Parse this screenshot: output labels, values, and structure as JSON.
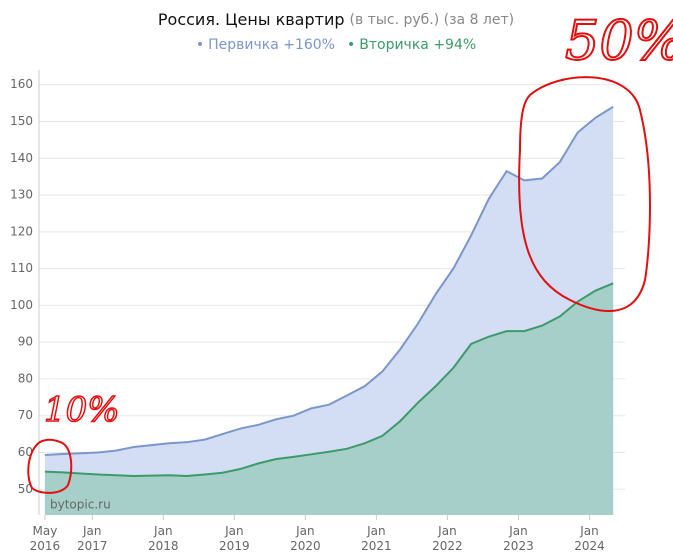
{
  "chart_data": {
    "type": "area",
    "title": "Россия. Цены квартир",
    "subtitle": "(в тыс. руб.) (за 8 лет)",
    "watermark": "bytopic.ru",
    "annotations": [
      "50%",
      "10%"
    ],
    "x": [
      "2016-05",
      "2016-08",
      "2016-11",
      "2017-02",
      "2017-05",
      "2017-08",
      "2017-11",
      "2018-02",
      "2018-05",
      "2018-08",
      "2018-11",
      "2019-02",
      "2019-05",
      "2019-08",
      "2019-11",
      "2020-02",
      "2020-05",
      "2020-08",
      "2020-11",
      "2021-02",
      "2021-05",
      "2021-08",
      "2021-11",
      "2022-02",
      "2022-05",
      "2022-08",
      "2022-11",
      "2023-02",
      "2023-05",
      "2023-08",
      "2023-11",
      "2024-02",
      "2024-05"
    ],
    "series": [
      {
        "name": "Первичка +160%",
        "color": "#7b96cc",
        "fill": "#d3ddf3",
        "values": [
          59.3,
          59.6,
          59.8,
          60.0,
          60.5,
          61.5,
          62.0,
          62.5,
          62.8,
          63.5,
          65.0,
          66.5,
          67.5,
          69.0,
          70.0,
          72.0,
          73.0,
          75.5,
          78.0,
          82.0,
          88.0,
          95.0,
          103.0,
          110.0,
          119.0,
          129.0,
          136.5,
          134.0,
          134.5,
          139.0,
          147.0,
          151.0,
          154.0
        ]
      },
      {
        "name": "Вторичка +94%",
        "color": "#3d9a6a",
        "fill": "#a7cfc9",
        "values": [
          54.8,
          54.6,
          54.3,
          54.0,
          53.8,
          53.6,
          53.7,
          53.8,
          53.6,
          54.0,
          54.5,
          55.5,
          57.0,
          58.2,
          58.8,
          59.5,
          60.2,
          61.0,
          62.5,
          64.5,
          68.5,
          73.5,
          78.0,
          83.0,
          89.5,
          91.5,
          93.0,
          93.0,
          94.5,
          97.0,
          101.0,
          104.0,
          106.0
        ]
      }
    ],
    "xlim": [
      "2016-04",
      "2024-07"
    ],
    "xticks": [
      {
        "value": "2016-05",
        "label": [
          "May",
          "2016"
        ]
      },
      {
        "value": "2017-01",
        "label": [
          "Jan",
          "2017"
        ]
      },
      {
        "value": "2018-01",
        "label": [
          "Jan",
          "2018"
        ]
      },
      {
        "value": "2019-01",
        "label": [
          "Jan",
          "2019"
        ]
      },
      {
        "value": "2020-01",
        "label": [
          "Jan",
          "2020"
        ]
      },
      {
        "value": "2021-01",
        "label": [
          "Jan",
          "2021"
        ]
      },
      {
        "value": "2022-01",
        "label": [
          "Jan",
          "2022"
        ]
      },
      {
        "value": "2023-01",
        "label": [
          "Jan",
          "2023"
        ]
      },
      {
        "value": "2024-01",
        "label": [
          "Jan",
          "2024"
        ]
      }
    ],
    "ylim": [
      43,
      164
    ],
    "yticks": [
      50,
      60,
      70,
      80,
      90,
      100,
      110,
      120,
      130,
      140,
      150,
      160
    ],
    "grid": true
  }
}
